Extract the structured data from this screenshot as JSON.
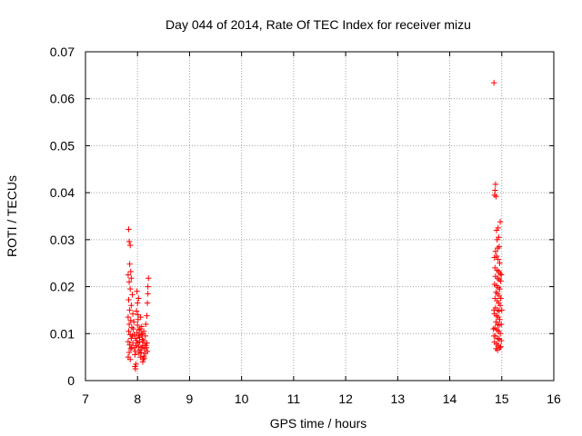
{
  "chart_data": {
    "type": "scatter",
    "title": "Day 044 of 2014, Rate Of TEC Index for receiver mizu",
    "xlabel": "GPS time / hours",
    "ylabel": "ROTI / TECUs",
    "xlim": [
      7,
      16
    ],
    "ylim": [
      0,
      0.07
    ],
    "xticks": [
      "7",
      "8",
      "9",
      "10",
      "11",
      "12",
      "13",
      "14",
      "15",
      "16"
    ],
    "yticks": [
      "0",
      "0.01",
      "0.02",
      "0.03",
      "0.04",
      "0.05",
      "0.06",
      "0.07"
    ],
    "grid": true,
    "marker": "plus",
    "color": "#ff0000",
    "series": [
      {
        "points": [
          [
            7.83,
            0.0322
          ],
          [
            7.84,
            0.0296
          ],
          [
            7.86,
            0.0288
          ],
          [
            7.85,
            0.0248
          ],
          [
            7.87,
            0.0232
          ],
          [
            7.82,
            0.0225
          ],
          [
            7.88,
            0.0218
          ],
          [
            7.84,
            0.021
          ],
          [
            7.86,
            0.0195
          ],
          [
            7.9,
            0.0183
          ],
          [
            7.83,
            0.0172
          ],
          [
            7.88,
            0.016
          ],
          [
            7.85,
            0.015
          ],
          [
            7.91,
            0.0142
          ],
          [
            7.82,
            0.0135
          ],
          [
            7.87,
            0.0128
          ],
          [
            7.84,
            0.012
          ],
          [
            7.89,
            0.0113
          ],
          [
            7.83,
            0.0105
          ],
          [
            7.86,
            0.0098
          ],
          [
            7.88,
            0.009
          ],
          [
            7.82,
            0.0083
          ],
          [
            7.85,
            0.0076
          ],
          [
            7.87,
            0.0068
          ],
          [
            7.84,
            0.006
          ],
          [
            7.82,
            0.005
          ],
          [
            7.86,
            0.0045
          ],
          [
            7.9,
            0.0095
          ],
          [
            7.92,
            0.011
          ],
          [
            7.93,
            0.0125
          ],
          [
            7.91,
            0.008
          ],
          [
            7.94,
            0.007
          ],
          [
            7.95,
            0.003
          ],
          [
            7.96,
            0.0025
          ],
          [
            7.97,
            0.0035
          ],
          [
            7.95,
            0.0055
          ],
          [
            7.96,
            0.0062
          ],
          [
            7.97,
            0.0075
          ],
          [
            7.98,
            0.0085
          ],
          [
            7.99,
            0.0102
          ],
          [
            8.0,
            0.0118
          ],
          [
            8.01,
            0.013
          ],
          [
            7.98,
            0.0148
          ],
          [
            8.0,
            0.0165
          ],
          [
            8.02,
            0.0175
          ],
          [
            7.99,
            0.019
          ],
          [
            8.01,
            0.014
          ],
          [
            8.03,
            0.0108
          ],
          [
            8.04,
            0.0092
          ],
          [
            8.02,
            0.0072
          ],
          [
            8.05,
            0.0065
          ],
          [
            8.03,
            0.0058
          ],
          [
            8.06,
            0.005
          ],
          [
            8.04,
            0.0082
          ],
          [
            8.07,
            0.0098
          ],
          [
            8.06,
            0.0135
          ],
          [
            8.08,
            0.0115
          ],
          [
            8.09,
            0.0088
          ],
          [
            8.1,
            0.0075
          ],
          [
            8.07,
            0.006
          ],
          [
            8.11,
            0.0045
          ],
          [
            8.1,
            0.004
          ],
          [
            8.12,
            0.0052
          ],
          [
            8.13,
            0.0068
          ],
          [
            8.14,
            0.008
          ],
          [
            8.15,
            0.0095
          ],
          [
            8.12,
            0.0105
          ],
          [
            8.16,
            0.012
          ],
          [
            8.18,
            0.0138
          ],
          [
            8.19,
            0.0165
          ],
          [
            8.2,
            0.0185
          ],
          [
            8.2,
            0.02
          ],
          [
            8.21,
            0.0218
          ],
          [
            8.18,
            0.008
          ],
          [
            8.17,
            0.007
          ],
          [
            8.19,
            0.0062
          ],
          [
            8.15,
            0.0058
          ],
          [
            8.13,
            0.0048
          ],
          [
            8.09,
            0.01
          ],
          [
            8.05,
            0.011
          ],
          [
            7.93,
            0.0098
          ],
          [
            7.89,
            0.007
          ],
          [
            7.96,
            0.009
          ],
          [
            8.0,
            0.008
          ],
          [
            8.02,
            0.0095
          ],
          [
            8.08,
            0.007
          ],
          [
            8.11,
            0.0085
          ],
          [
            8.16,
            0.0075
          ]
        ]
      },
      {
        "points": [
          [
            14.85,
            0.0634
          ],
          [
            14.88,
            0.0418
          ],
          [
            14.87,
            0.0405
          ],
          [
            14.89,
            0.0392
          ],
          [
            14.86,
            0.0395
          ],
          [
            14.9,
            0.032
          ],
          [
            14.93,
            0.0325
          ],
          [
            14.97,
            0.0338
          ],
          [
            14.91,
            0.03
          ],
          [
            14.94,
            0.0305
          ],
          [
            14.88,
            0.0275
          ],
          [
            14.92,
            0.0282
          ],
          [
            14.95,
            0.0285
          ],
          [
            14.86,
            0.0262
          ],
          [
            14.9,
            0.0265
          ],
          [
            14.93,
            0.0258
          ],
          [
            14.96,
            0.025
          ],
          [
            14.87,
            0.024
          ],
          [
            14.91,
            0.0235
          ],
          [
            14.94,
            0.0232
          ],
          [
            14.97,
            0.0228
          ],
          [
            14.88,
            0.0222
          ],
          [
            14.92,
            0.0218
          ],
          [
            14.95,
            0.0215
          ],
          [
            14.98,
            0.0212
          ],
          [
            14.86,
            0.0205
          ],
          [
            14.9,
            0.0202
          ],
          [
            14.93,
            0.0198
          ],
          [
            14.96,
            0.0195
          ],
          [
            14.89,
            0.0188
          ],
          [
            14.92,
            0.0185
          ],
          [
            14.95,
            0.018
          ],
          [
            14.87,
            0.0175
          ],
          [
            14.91,
            0.017
          ],
          [
            14.94,
            0.0165
          ],
          [
            14.97,
            0.016
          ],
          [
            14.88,
            0.0155
          ],
          [
            14.92,
            0.015
          ],
          [
            14.95,
            0.0148
          ],
          [
            14.86,
            0.0142
          ],
          [
            14.9,
            0.0138
          ],
          [
            14.93,
            0.0135
          ],
          [
            14.96,
            0.013
          ],
          [
            14.89,
            0.0125
          ],
          [
            14.92,
            0.012
          ],
          [
            14.95,
            0.0118
          ],
          [
            14.87,
            0.0112
          ],
          [
            14.91,
            0.0108
          ],
          [
            14.94,
            0.0105
          ],
          [
            14.97,
            0.01
          ],
          [
            14.88,
            0.0095
          ],
          [
            14.92,
            0.009
          ],
          [
            14.95,
            0.0088
          ],
          [
            14.86,
            0.0082
          ],
          [
            14.9,
            0.0078
          ],
          [
            14.93,
            0.0075
          ],
          [
            14.96,
            0.007
          ],
          [
            14.89,
            0.0068
          ],
          [
            14.92,
            0.0065
          ],
          [
            14.98,
            0.0072
          ],
          [
            14.99,
            0.0085
          ],
          [
            14.99,
            0.012
          ],
          [
            15.0,
            0.015
          ],
          [
            14.98,
            0.0175
          ],
          [
            14.99,
            0.0225
          ],
          [
            14.85,
            0.015
          ],
          [
            14.84,
            0.011
          ],
          [
            14.85,
            0.0095
          ]
        ]
      }
    ]
  }
}
